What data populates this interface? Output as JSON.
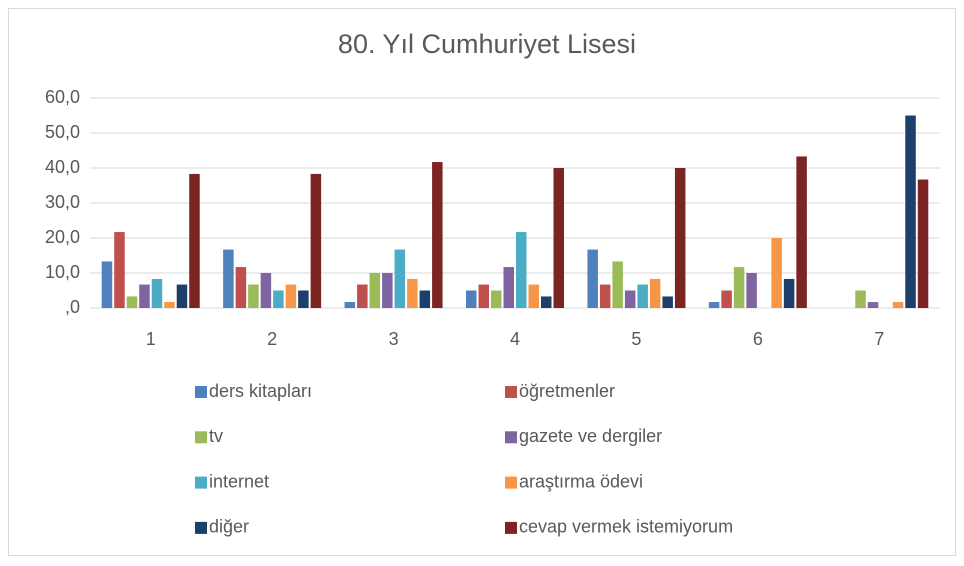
{
  "chart_data": {
    "type": "bar",
    "title": "80. Yıl Cumhuriyet Lisesi",
    "categories": [
      "1",
      "2",
      "3",
      "4",
      "5",
      "6",
      "7"
    ],
    "series": [
      {
        "name": "ders kitapları",
        "color": "#4f81bd",
        "values": [
          13.3,
          16.7,
          1.7,
          5.0,
          16.7,
          1.7,
          0
        ]
      },
      {
        "name": "öğretmenler",
        "color": "#c0504d",
        "values": [
          21.7,
          11.7,
          6.7,
          6.7,
          6.7,
          5.0,
          0
        ]
      },
      {
        "name": "tv",
        "color": "#9bbb59",
        "values": [
          3.3,
          6.7,
          10.0,
          5.0,
          13.3,
          11.7,
          5.0
        ]
      },
      {
        "name": "gazete ve dergiler",
        "color": "#8064a2",
        "values": [
          6.7,
          10.0,
          10.0,
          11.7,
          5.0,
          10.0,
          1.7
        ]
      },
      {
        "name": "internet",
        "color": "#4bacc6",
        "values": [
          8.3,
          5.0,
          16.7,
          21.7,
          6.7,
          0,
          0
        ]
      },
      {
        "name": "araştırma ödevi",
        "color": "#f79646",
        "values": [
          1.7,
          6.7,
          8.3,
          6.7,
          8.3,
          20.0,
          1.7
        ]
      },
      {
        "name": "diğer",
        "color": "#1f3f6b",
        "values": [
          6.7,
          5.0,
          5.0,
          3.3,
          3.3,
          8.3,
          55.0
        ]
      },
      {
        "name": "cevap vermek istemiyorum",
        "color": "#7b2421",
        "values": [
          38.3,
          38.3,
          41.7,
          40.0,
          40.0,
          43.3,
          36.7
        ]
      }
    ],
    "ylim": [
      0,
      60
    ],
    "yticks": [
      {
        "value": 0,
        "label": ",0"
      },
      {
        "value": 10,
        "label": "10,0"
      },
      {
        "value": 20,
        "label": "20,0"
      },
      {
        "value": 30,
        "label": "30,0"
      },
      {
        "value": 40,
        "label": "40,0"
      },
      {
        "value": 50,
        "label": "50,0"
      },
      {
        "value": 60,
        "label": "60,0"
      }
    ],
    "grid": true,
    "legend": "bottom"
  }
}
